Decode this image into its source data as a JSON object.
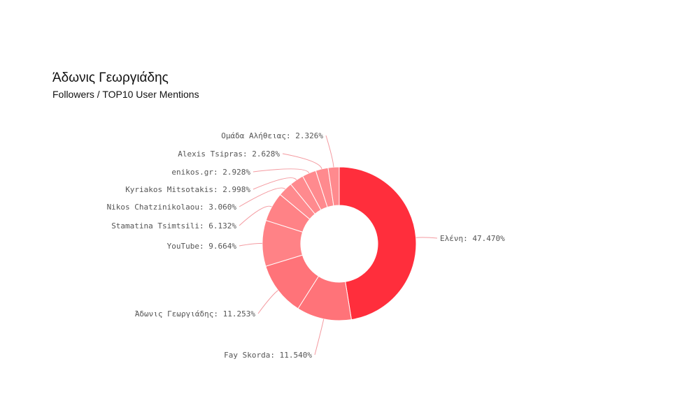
{
  "header": {
    "title": "Άδωνις Γεωργιάδης",
    "subtitle": "Followers / TOP10 User Mentions"
  },
  "chart_data": {
    "type": "pie",
    "donut": true,
    "title": "Άδωνις Γεωργιάδης",
    "subtitle": "Followers / TOP10 User Mentions",
    "categories": [
      "Ελένη",
      "Fay Skorda",
      "Άδωνις Γεωργιάδης",
      "YouTube",
      "Stamatina Tsimtsili",
      "Nikos Chatzinikolaou",
      "Kyriakos Mitsotakis",
      "enikos.gr",
      "Alexis Tsipras",
      "Ομάδα Αλήθειας"
    ],
    "values": [
      47.47,
      11.54,
      11.253,
      9.664,
      6.132,
      3.06,
      2.998,
      2.928,
      2.628,
      2.326
    ],
    "labels": [
      "Ελένη: 47.470%",
      "Fay Skorda: 11.540%",
      "Άδωνις Γεωργιάδης: 11.253%",
      "YouTube: 9.664%",
      "Stamatina Tsimtsili: 6.132%",
      "Nikos Chatzinikolaou: 3.060%",
      "Kyriakos Mitsotakis: 2.998%",
      "enikos.gr: 2.928%",
      "Alexis Tsipras: 2.628%",
      "Ομάδα Αλήθειας: 2.326%"
    ],
    "colors": [
      "#ff2e3c",
      "#ff7379",
      "#ff7379",
      "#ff8286",
      "#ff8286",
      "#ff8a8e",
      "#ff8a8e",
      "#ff8a8e",
      "#ff8a8e",
      "#ff8a8e"
    ],
    "leader_color": "#f49aa0"
  }
}
